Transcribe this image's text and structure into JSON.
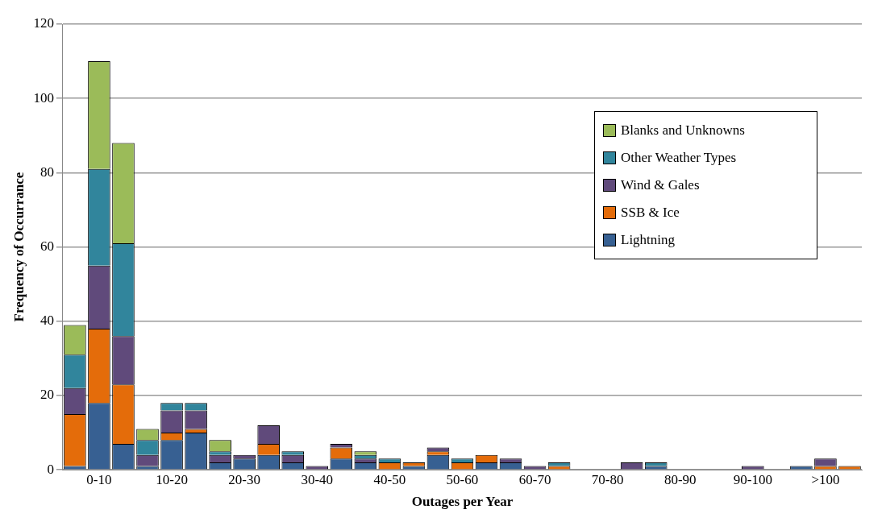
{
  "chart_data": {
    "type": "bar",
    "stacked": true,
    "xlabel": "Outages per Year",
    "ylabel": "Frequency of Occurrance",
    "categories": [
      null,
      "0-10",
      null,
      null,
      "10-20",
      null,
      null,
      "20-30",
      null,
      null,
      "30-40",
      null,
      null,
      "40-50",
      null,
      null,
      "50-60",
      null,
      null,
      "60-70",
      null,
      null,
      "70-80",
      null,
      null,
      "80-90",
      null,
      null,
      "90-100",
      null,
      null,
      ">100",
      null
    ],
    "ylim": [
      0,
      120
    ],
    "yticks": [
      0,
      20,
      40,
      60,
      80,
      100,
      120
    ],
    "grid": "y",
    "legend": "top right",
    "series": [
      {
        "name": "Lightning",
        "color": "#376092",
        "values": [
          1,
          18,
          7,
          1,
          8,
          10,
          2,
          3,
          4,
          2,
          0,
          3,
          2,
          0,
          1,
          4,
          0,
          2,
          2,
          0,
          0,
          0,
          0,
          0,
          1,
          0,
          0,
          0,
          0,
          0,
          1,
          0,
          0
        ]
      },
      {
        "name": "SSB & Ice",
        "color": "#e46c0a",
        "values": [
          14,
          20,
          16,
          0,
          2,
          1,
          0,
          0,
          3,
          0,
          0,
          3,
          0,
          2,
          1,
          1,
          2,
          2,
          0,
          0,
          1,
          0,
          0,
          0,
          0,
          0,
          0,
          0,
          0,
          0,
          0,
          1,
          1
        ]
      },
      {
        "name": "Wind & Gales",
        "color": "#604a7b",
        "values": [
          7,
          17,
          13,
          3,
          6,
          5,
          2,
          1,
          5,
          2,
          1,
          1,
          1,
          0,
          0,
          1,
          0,
          0,
          1,
          1,
          0,
          0,
          0,
          2,
          0,
          0,
          0,
          0,
          1,
          0,
          0,
          2,
          0
        ]
      },
      {
        "name": "Other Weather Types",
        "color": "#31859c",
        "values": [
          9,
          26,
          25,
          4,
          2,
          2,
          1,
          0,
          0,
          1,
          0,
          0,
          1,
          1,
          0,
          0,
          1,
          0,
          0,
          0,
          1,
          0,
          0,
          0,
          1,
          0,
          0,
          0,
          0,
          0,
          0,
          0,
          0
        ]
      },
      {
        "name": "Blanks and Unknowns",
        "color": "#9bbb59",
        "values": [
          8,
          29,
          27,
          3,
          0,
          0,
          3,
          0,
          0,
          0,
          0,
          0,
          1,
          0,
          0,
          0,
          0,
          0,
          0,
          0,
          0,
          0,
          0,
          0,
          0,
          0,
          0,
          0,
          0,
          0,
          0,
          0,
          0
        ]
      }
    ]
  }
}
